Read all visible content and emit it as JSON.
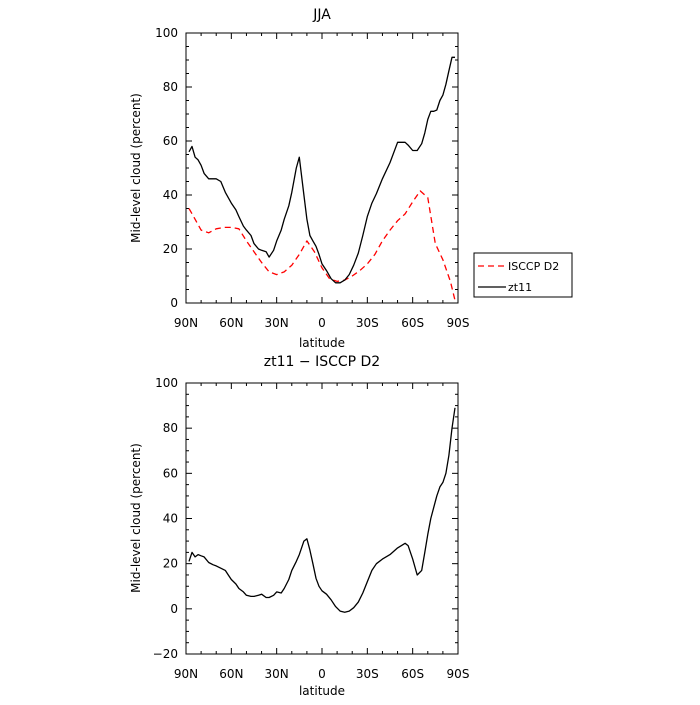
{
  "chart_data": [
    {
      "type": "line",
      "title": "JJA",
      "xlabel": "latitude",
      "ylabel": "Mid-level cloud (percent)",
      "xlim": [
        -90,
        90
      ],
      "ylim": [
        0,
        100
      ],
      "xticks": [
        -90,
        -60,
        -30,
        0,
        30,
        60,
        90
      ],
      "xtick_labels": [
        "90N",
        "60N",
        "30N",
        "0",
        "30S",
        "60S",
        "90S"
      ],
      "yticks": [
        0,
        20,
        40,
        60,
        80,
        100
      ],
      "ytick_labels": [
        "0",
        "20",
        "40",
        "60",
        "80",
        "100"
      ],
      "grid": false,
      "legend": {
        "placement": "outside-right",
        "entries": [
          "ISCCP D2",
          "zt11"
        ]
      },
      "series": [
        {
          "name": "ISCCP D2",
          "color": "#ff0000",
          "dash": "dashed",
          "x": [
            -88,
            -85,
            -80,
            -75,
            -70,
            -65,
            -60,
            -55,
            -50,
            -45,
            -40,
            -35,
            -30,
            -25,
            -20,
            -15,
            -10,
            -5,
            0,
            5,
            10,
            15,
            20,
            25,
            30,
            35,
            40,
            45,
            50,
            55,
            60,
            65,
            70,
            75,
            80,
            85,
            88
          ],
          "y": [
            35,
            32,
            27,
            26,
            27.5,
            28,
            28,
            27.5,
            23,
            19,
            15,
            11.5,
            10.5,
            11.5,
            14,
            18,
            23,
            19,
            13,
            9,
            8,
            8.5,
            10,
            12,
            14.5,
            18,
            23,
            27,
            30.5,
            33,
            37.5,
            41.5,
            39,
            22,
            16,
            8,
            1
          ]
        },
        {
          "name": "zt11",
          "color": "#000000",
          "dash": "solid",
          "x": [
            -88,
            -86,
            -84,
            -82,
            -80,
            -78,
            -75,
            -72,
            -70,
            -67,
            -64,
            -62,
            -60,
            -57,
            -55,
            -52,
            -50,
            -47,
            -45,
            -42,
            -40,
            -37,
            -35,
            -32,
            -30,
            -27,
            -25,
            -22,
            -20,
            -17,
            -15,
            -12,
            -10,
            -8,
            -6,
            -4,
            -2,
            0,
            3,
            6,
            9,
            12,
            15,
            18,
            21,
            24,
            27,
            30,
            33,
            36,
            40,
            45,
            50,
            55,
            57,
            60,
            63,
            66,
            68,
            70,
            72,
            74,
            76,
            78,
            80,
            82,
            84,
            86,
            88
          ],
          "y": [
            56,
            58,
            54,
            53,
            51,
            48,
            46,
            46,
            46,
            45,
            41,
            39,
            37,
            34.5,
            32,
            28.5,
            27,
            25,
            22,
            20,
            19.5,
            19,
            17,
            19.5,
            23,
            27,
            31,
            36,
            41,
            50,
            54,
            40,
            31,
            25,
            23,
            21,
            18,
            14.5,
            12,
            9,
            7.5,
            7.5,
            8.5,
            10.5,
            14,
            18.5,
            25,
            32,
            37,
            40.5,
            46,
            52,
            59.5,
            59.5,
            58.5,
            56.5,
            56.5,
            59,
            63,
            68,
            71,
            71,
            71.5,
            75,
            77,
            81,
            86,
            91,
            91
          ]
        }
      ]
    },
    {
      "type": "line",
      "title": "zt11 − ISCCP D2",
      "xlabel": "latitude",
      "ylabel": "Mid-level cloud (percent)",
      "xlim": [
        -90,
        90
      ],
      "ylim": [
        -20,
        100
      ],
      "xticks": [
        -90,
        -60,
        -30,
        0,
        30,
        60,
        90
      ],
      "xtick_labels": [
        "90N",
        "60N",
        "30N",
        "0",
        "30S",
        "60S",
        "90S"
      ],
      "yticks": [
        -20,
        0,
        20,
        40,
        60,
        80,
        100
      ],
      "ytick_labels": [
        "−20",
        "0",
        "20",
        "40",
        "60",
        "80",
        "100"
      ],
      "grid": false,
      "series": [
        {
          "color": "#000000",
          "dash": "solid",
          "x": [
            -88,
            -86,
            -84,
            -82,
            -80,
            -78,
            -75,
            -72,
            -70,
            -67,
            -64,
            -62,
            -60,
            -57,
            -55,
            -52,
            -50,
            -47,
            -45,
            -42,
            -40,
            -37,
            -35,
            -32,
            -30,
            -27,
            -25,
            -22,
            -20,
            -17,
            -15,
            -12,
            -10,
            -8,
            -6,
            -4,
            -2,
            0,
            3,
            6,
            9,
            12,
            15,
            18,
            21,
            24,
            27,
            30,
            33,
            36,
            40,
            45,
            50,
            55,
            57,
            60,
            63,
            66,
            68,
            70,
            72,
            74,
            76,
            78,
            80,
            82,
            84,
            86,
            88
          ],
          "y": [
            21,
            25,
            23,
            24,
            23.5,
            23,
            20.5,
            19.5,
            19,
            18,
            17,
            15,
            13,
            11,
            9,
            7.5,
            6,
            5.5,
            5.5,
            6,
            6.5,
            5,
            5,
            6,
            7.5,
            7,
            9,
            13,
            17,
            21,
            24,
            30,
            31,
            26,
            20,
            13.5,
            10,
            8,
            6.5,
            4,
            1,
            -1,
            -1.5,
            -1,
            0.5,
            3,
            7,
            12,
            17,
            20,
            22,
            24,
            27,
            29,
            28,
            22,
            15,
            17,
            25,
            33,
            40,
            45,
            50,
            54,
            56,
            60,
            68,
            80,
            89
          ]
        }
      ]
    }
  ]
}
